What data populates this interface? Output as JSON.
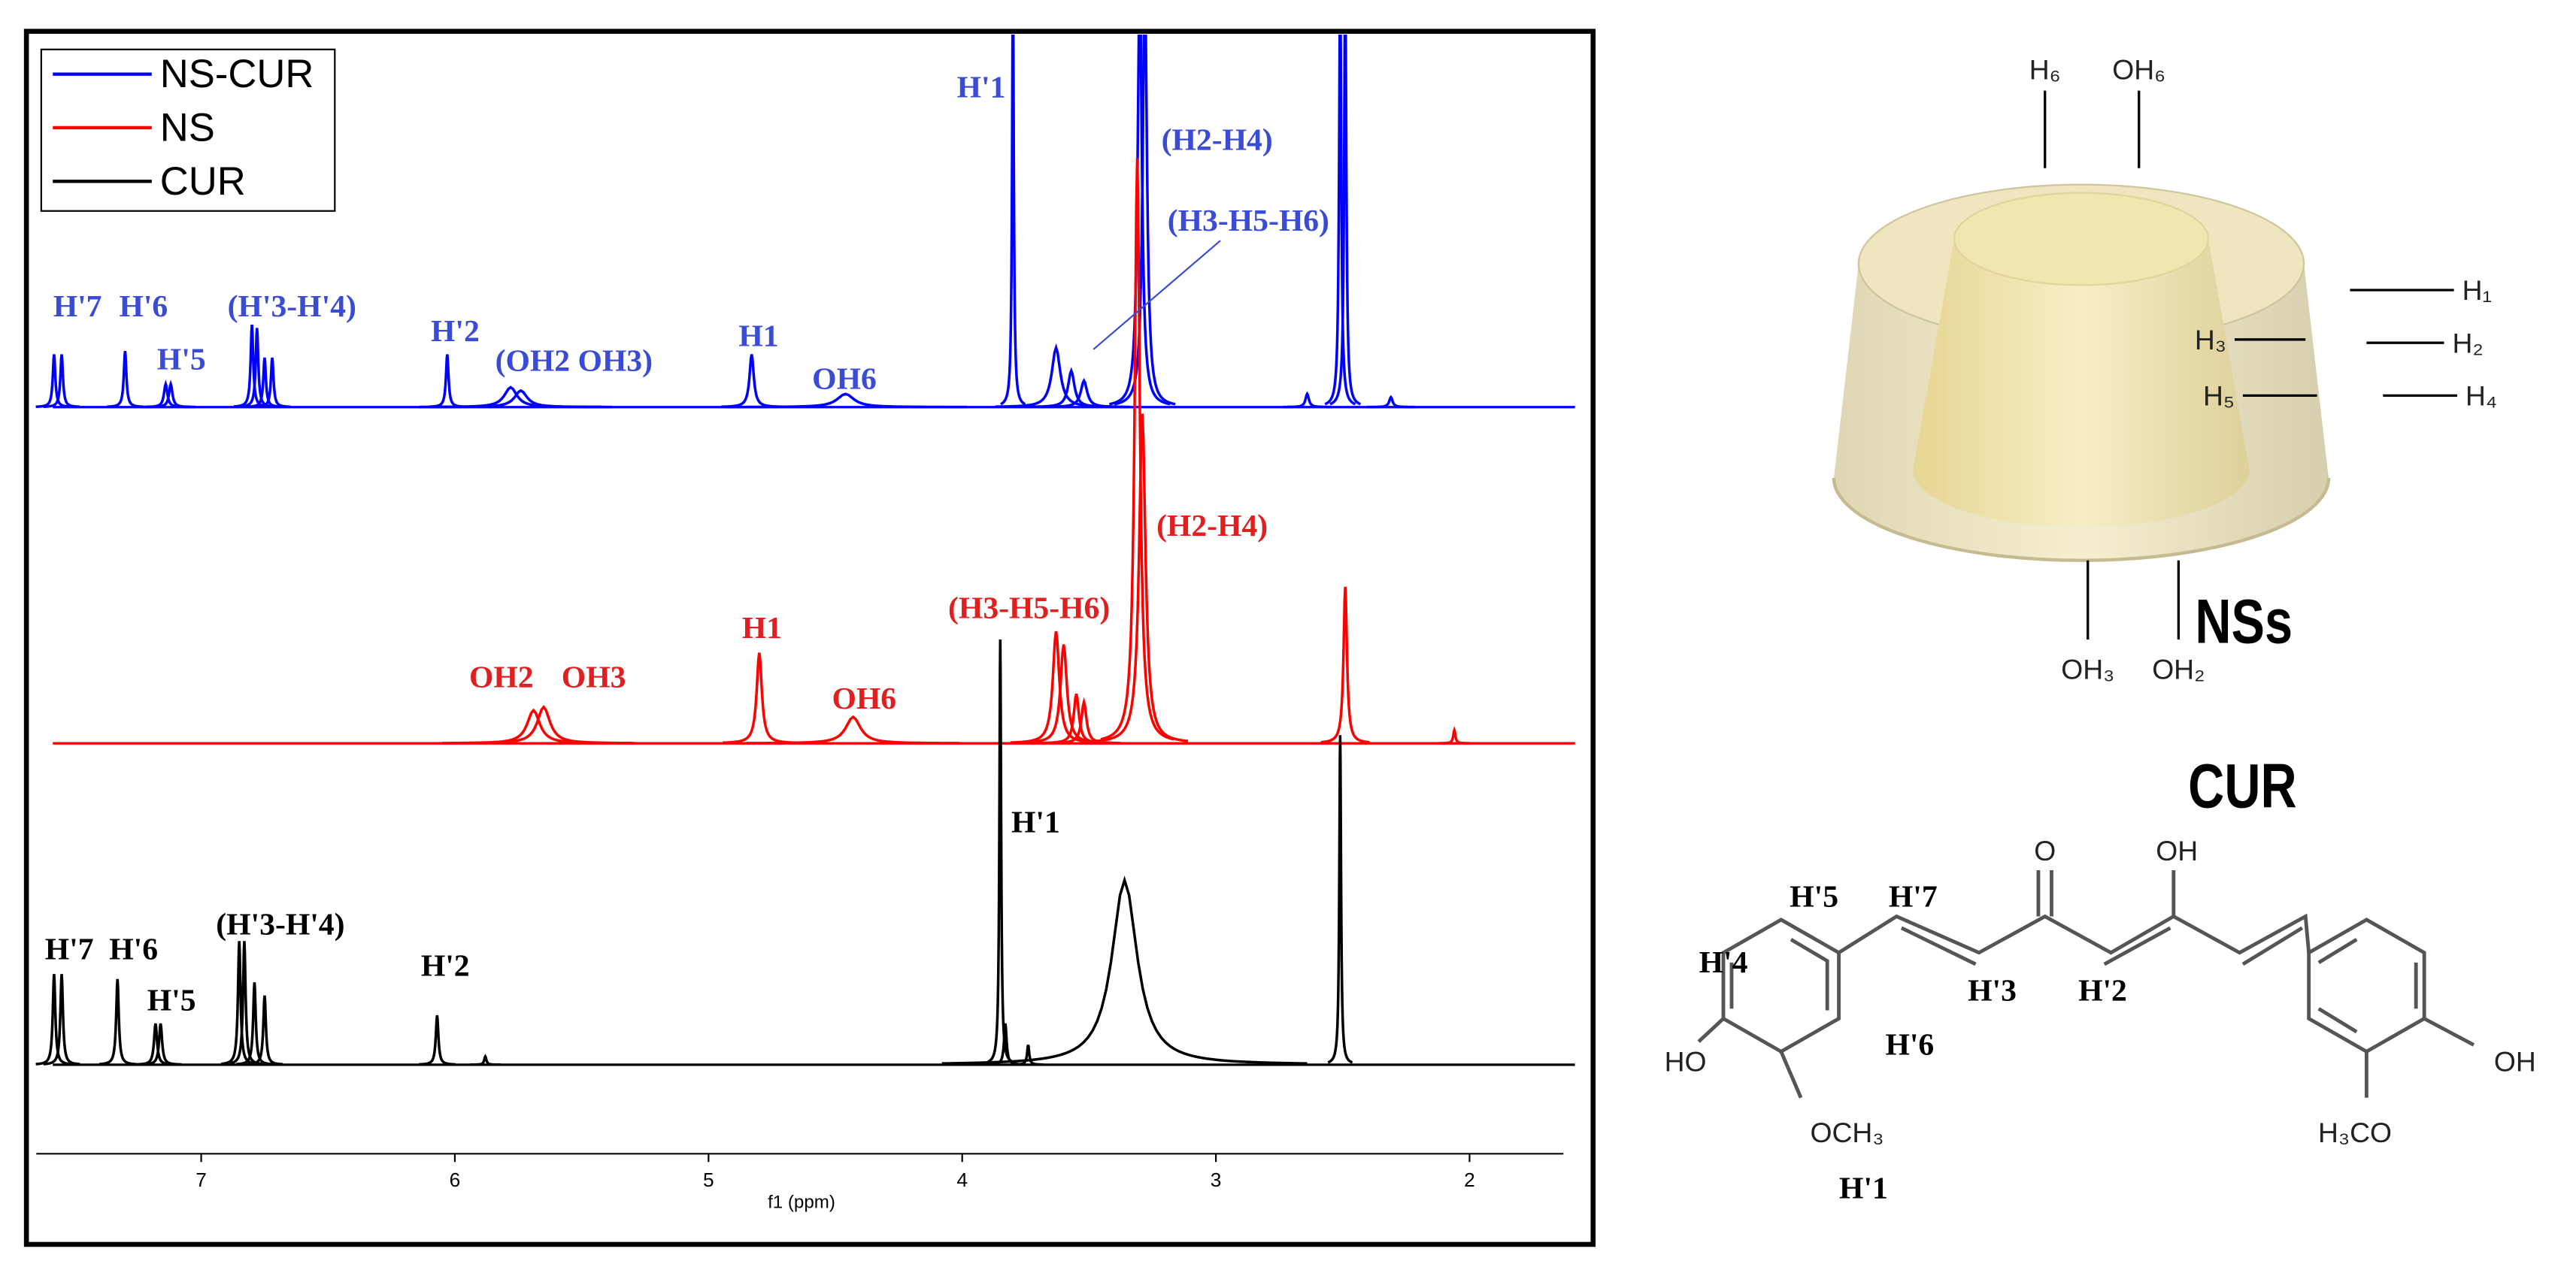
{
  "chart_data": {
    "type": "spectrum",
    "xlabel": "f1 (ppm)",
    "xlim": [
      7.65,
      1.63
    ],
    "xticks": [
      7,
      6,
      5,
      4,
      3,
      2
    ],
    "series": [
      {
        "name": "NS-CUR",
        "color": "#0000ff",
        "label_color": "#3a4bd6",
        "x": [
          7.58,
          7.55,
          7.3,
          7.14,
          7.12,
          6.8,
          6.78,
          6.75,
          6.72,
          6.03,
          5.78,
          5.74,
          4.83,
          4.46,
          3.8,
          3.63,
          3.57,
          3.52,
          3.3,
          3.28,
          2.64,
          2.51,
          2.49,
          2.31
        ],
        "values": [
          32,
          32,
          34,
          14,
          14,
          50,
          48,
          30,
          30,
          32,
          12,
          10,
          32,
          8,
          260,
          36,
          22,
          16,
          260,
          260,
          8,
          260,
          260,
          6
        ],
        "widths": [
          0.006,
          0.006,
          0.006,
          0.008,
          0.008,
          0.006,
          0.006,
          0.006,
          0.006,
          0.006,
          0.03,
          0.03,
          0.01,
          0.04,
          0.004,
          0.02,
          0.015,
          0.015,
          0.01,
          0.01,
          0.008,
          0.005,
          0.005,
          0.008
        ],
        "annotations": [
          "H'7",
          "H'6",
          "H'5",
          "(H'3-H'4)",
          "H'2",
          "(OH2  OH3)",
          "H1",
          "OH6",
          "H'1",
          "(H2-H4)",
          "(H3-H5-H6)"
        ]
      },
      {
        "name": "NS",
        "color": "#ff0000",
        "label_color": "#e02020",
        "x": [
          5.69,
          5.65,
          4.8,
          4.43,
          3.63,
          3.6,
          3.55,
          3.52,
          3.31,
          3.29,
          2.49,
          2.06
        ],
        "values": [
          20,
          22,
          55,
          16,
          68,
          60,
          30,
          25,
          355,
          200,
          95,
          8
        ],
        "widths": [
          0.03,
          0.03,
          0.012,
          0.035,
          0.015,
          0.015,
          0.012,
          0.012,
          0.012,
          0.015,
          0.008,
          0.005
        ],
        "annotations": [
          "OH2",
          "OH3",
          "H1",
          "OH6",
          "(H3-H5-H6)",
          "(H2-H4)"
        ]
      },
      {
        "name": "CUR",
        "color": "#000000",
        "label_color": "#000000",
        "x": [
          7.58,
          7.55,
          7.33,
          7.18,
          7.16,
          6.85,
          6.83,
          6.79,
          6.75,
          6.07,
          5.88,
          3.85,
          3.83,
          3.74,
          3.36,
          2.51
        ],
        "values": [
          55,
          55,
          52,
          25,
          25,
          75,
          75,
          50,
          42,
          30,
          5,
          258,
          25,
          12,
          112,
          200
        ],
        "widths": [
          0.006,
          0.006,
          0.006,
          0.007,
          0.007,
          0.006,
          0.006,
          0.006,
          0.006,
          0.006,
          0.005,
          0.004,
          0.006,
          0.005,
          0.06,
          0.004
        ],
        "annotations": [
          "H'7",
          "H'6",
          "H'5",
          "(H'3-H'4)",
          "H'2",
          "H'1"
        ]
      }
    ]
  },
  "diagram": {
    "ns": {
      "title": "NSs",
      "labels": [
        "H₆",
        "OH₆",
        "H₁",
        "H₃",
        "H₂",
        "H₅",
        "H₄",
        "OH₃",
        "OH₂"
      ]
    },
    "cur": {
      "title": "CUR",
      "labels": [
        "H'5",
        "H'7",
        "H'4",
        "H'3",
        "H'2",
        "H'6",
        "H'1",
        "O",
        "OH",
        "HO",
        "OH",
        "OCH₃",
        "H₃CO"
      ]
    }
  }
}
